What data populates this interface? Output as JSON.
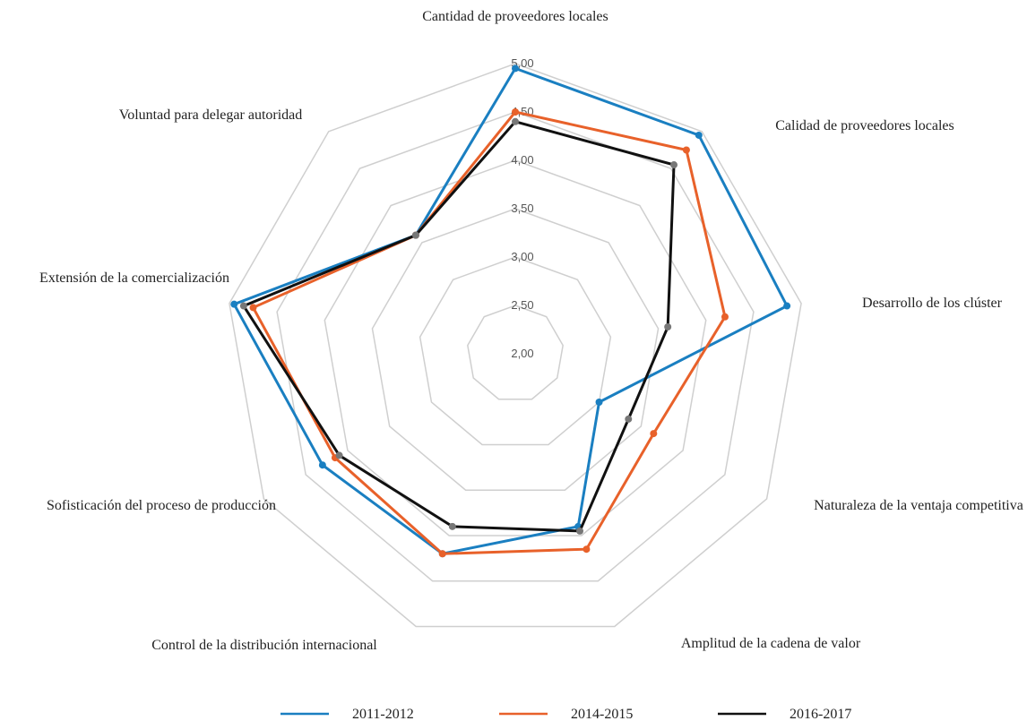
{
  "chart_data": {
    "type": "radar",
    "categories": [
      "Cantidad de proveedores locales",
      "Calidad de proveedores locales",
      "Desarrollo de los clúster",
      "Naturaleza de la ventaja competitiva",
      "Amplitud de la cadena de valor",
      "Control de la distribución internacional",
      "Sofisticación del proceso de producción",
      "Extensión de la comercialización",
      "Voluntad para delegar autoridad"
    ],
    "series": [
      {
        "name": "2011-2012",
        "color": "#1a7fc1",
        "values": [
          4.95,
          4.95,
          4.85,
          3.0,
          3.9,
          4.2,
          4.3,
          4.95,
          3.6
        ]
      },
      {
        "name": "2014-2015",
        "color": "#e8612a",
        "values": [
          4.5,
          4.75,
          4.2,
          3.65,
          4.15,
          4.2,
          4.15,
          4.75,
          3.6
        ]
      },
      {
        "name": "2016-2017",
        "color": "#111111",
        "values": [
          4.4,
          4.55,
          3.6,
          3.35,
          3.95,
          3.9,
          4.1,
          4.85,
          3.6
        ]
      }
    ],
    "ylim": [
      2,
      5
    ],
    "yticks": [
      {
        "value": 2,
        "label": "2,00"
      },
      {
        "value": 2.5,
        "label": "2,50"
      },
      {
        "value": 3,
        "label": "3,00"
      },
      {
        "value": 3.5,
        "label": "3,50"
      },
      {
        "value": 4,
        "label": "4,00"
      },
      {
        "value": 4.5,
        "label": "4,50"
      },
      {
        "value": 5,
        "label": "5,00"
      }
    ],
    "grid": true,
    "legend": "bottom"
  }
}
